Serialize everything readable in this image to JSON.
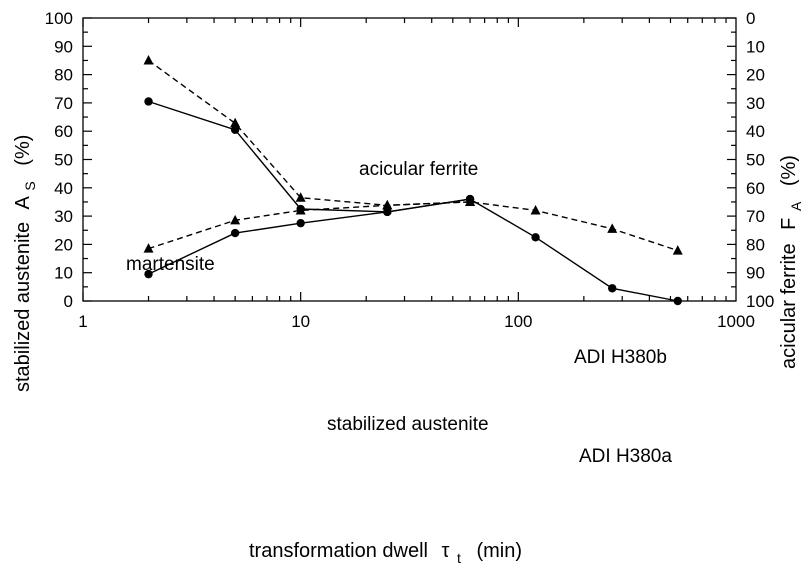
{
  "chart_data": {
    "type": "line",
    "x_scale": "log",
    "xlim": [
      1,
      1000
    ],
    "ylim": [
      0,
      100
    ],
    "y2lim": [
      100,
      0
    ],
    "x_ticks": [
      "1",
      "10",
      "100",
      "1000"
    ],
    "y_ticks": [
      "0",
      "10",
      "20",
      "30",
      "40",
      "50",
      "60",
      "70",
      "80",
      "90",
      "100"
    ],
    "y2_ticks": [
      "100",
      "90",
      "80",
      "70",
      "60",
      "50",
      "40",
      "30",
      "20",
      "10",
      "0"
    ],
    "xlabel": "transformation dwell",
    "xlabel_symbol": "τ",
    "xlabel_sub": "t",
    "xlabel_unit": "(min)",
    "ylabel": "stabilized austenite",
    "ylabel_symbol": "A",
    "ylabel_sub": "S",
    "ylabel_unit": "(%)",
    "y2label": "acicular ferrite",
    "y2label_symbol": "F",
    "y2label_sub": "A",
    "y2label_unit": "(%)",
    "grid": false,
    "annotations": [
      "acicular ferrite",
      "martensite",
      "stabilized austenite",
      "ADI H380b",
      "ADI H380a"
    ],
    "series": [
      {
        "name": "ADI H380a",
        "role": "stabilized austenite",
        "marker": "circle",
        "line_style": "solid",
        "x": [
          2,
          5,
          10,
          25,
          60,
          120,
          270,
          540
        ],
        "y": [
          9.5,
          24,
          27.5,
          31.5,
          36,
          22.5,
          4.5,
          0
        ]
      },
      {
        "name": "ADI H380a",
        "role": "acicular ferrite",
        "marker": "circle",
        "line_style": "solid",
        "x": [
          2,
          5,
          10,
          25,
          60
        ],
        "y": [
          70.5,
          60.5,
          32.5,
          31.5,
          36
        ]
      },
      {
        "name": "ADI H380b",
        "role": "stabilized austenite",
        "marker": "triangle",
        "line_style": "dashed",
        "x": [
          2,
          5,
          10,
          25,
          60,
          120,
          270,
          540
        ],
        "y": [
          18.5,
          28.5,
          32,
          33.8,
          35,
          32,
          25.5,
          17.8
        ]
      },
      {
        "name": "ADI H380b",
        "role": "acicular ferrite",
        "marker": "triangle",
        "line_style": "dashed",
        "x": [
          2,
          5,
          10,
          25,
          60
        ],
        "y": [
          85,
          62.8,
          36.5,
          33.8,
          35
        ]
      }
    ]
  }
}
